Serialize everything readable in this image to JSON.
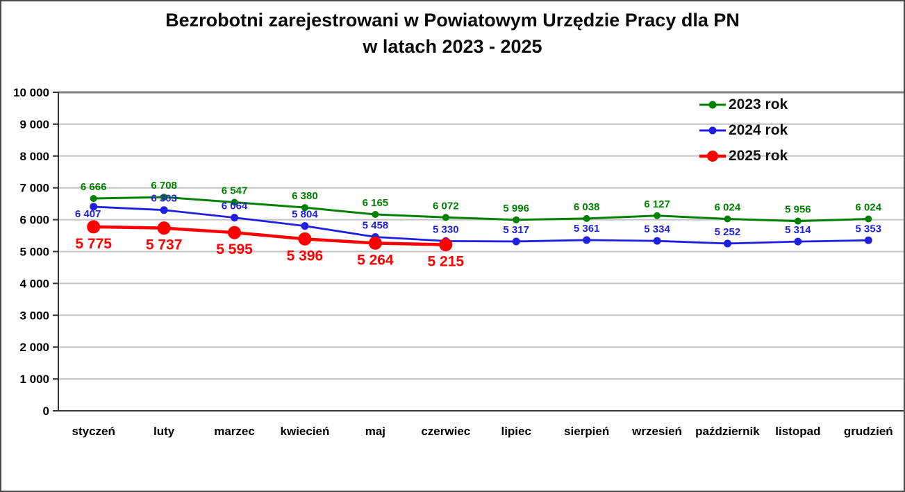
{
  "title": {
    "line1": "Bezrobotni zarejestrowani w Powiatowym Urzędzie Pracy dla PN",
    "line2": "w latach 2023 - 2025"
  },
  "legend": {
    "position": "top-right",
    "items": [
      {
        "label": "2023 rok",
        "color": "#008000",
        "marker": "small"
      },
      {
        "label": "2024 rok",
        "color": "#1f1fe0",
        "marker": "small"
      },
      {
        "label": "2025 rok",
        "color": "#ff0000",
        "marker": "large"
      }
    ]
  },
  "chart_data": {
    "type": "line",
    "title": "Bezrobotni zarejestrowani w Powiatowym Urzędzie Pracy dla PN w latach 2023 - 2025",
    "categories": [
      "styczeń",
      "luty",
      "marzec",
      "kwiecień",
      "maj",
      "czerwiec",
      "lipiec",
      "sierpień",
      "wrzesień",
      "październik",
      "listopad",
      "grudzień"
    ],
    "series": [
      {
        "name": "2023 rok",
        "color": "#008000",
        "values": [
          6666,
          6708,
          6547,
          6380,
          6165,
          6072,
          5996,
          6038,
          6127,
          6024,
          5956,
          6024
        ]
      },
      {
        "name": "2024 rok",
        "color": "#1f1fe0",
        "values": [
          6407,
          6303,
          6064,
          5804,
          5458,
          5330,
          5317,
          5361,
          5334,
          5252,
          5314,
          5353
        ]
      },
      {
        "name": "2025 rok",
        "color": "#ff0000",
        "values": [
          5775,
          5737,
          5595,
          5396,
          5264,
          5215
        ]
      }
    ],
    "xlabel": "",
    "ylabel": "",
    "ylim": [
      0,
      10000
    ],
    "ytick_step": 1000,
    "ytick_labels": [
      "0",
      "1 000",
      "2 000",
      "3 000",
      "4 000",
      "5 000",
      "6 000",
      "7 000",
      "8 000",
      "9 000",
      "10 000"
    ],
    "grid": true,
    "data_labels": true,
    "number_format": "space-thousands",
    "legend_position": "top-right"
  }
}
